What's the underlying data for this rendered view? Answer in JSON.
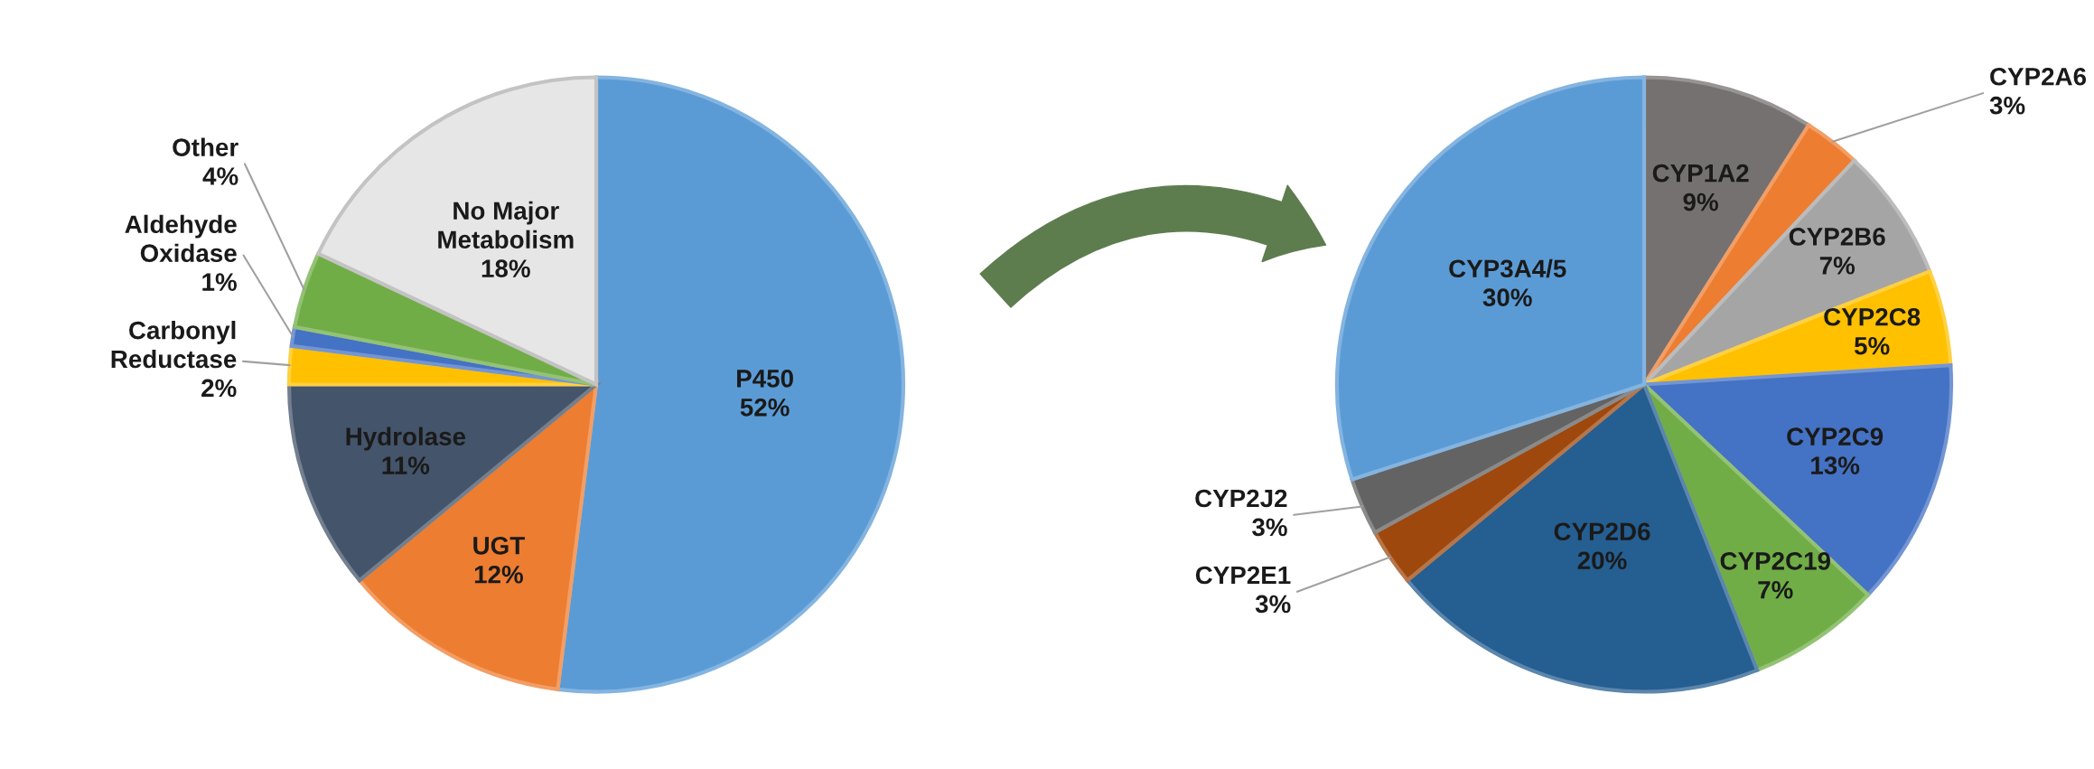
{
  "chart_data": [
    {
      "type": "pie",
      "categories": [
        "P450",
        "UGT",
        "Hydrolase",
        "Carbonyl Reductase",
        "Aldehyde Oxidase",
        "Other",
        "No Major Metabolism"
      ],
      "values": [
        52,
        12,
        11,
        2,
        1,
        4,
        18
      ],
      "value_labels": [
        "52%",
        "12%",
        "11%",
        "2%",
        "1%",
        "4%",
        "18%"
      ],
      "colors": [
        "#5b9bd5",
        "#ed7d31",
        "#44546a",
        "#ffc000",
        "#4472c4",
        "#70ad47",
        "#e7e6e6"
      ]
    },
    {
      "type": "pie",
      "categories": [
        "CYP1A2",
        "CYP2A6",
        "CYP2B6",
        "CYP2C8",
        "CYP2C9",
        "CYP2C19",
        "CYP2D6",
        "CYP2E1",
        "CYP2J2",
        "CYP3A4/5"
      ],
      "values": [
        9,
        3,
        7,
        5,
        13,
        7,
        20,
        3,
        3,
        30
      ],
      "value_labels": [
        "9%",
        "3%",
        "7%",
        "5%",
        "13%",
        "7%",
        "20%",
        "3%",
        "3%",
        "30%"
      ],
      "colors": [
        "#767171",
        "#ed7d31",
        "#a5a5a5",
        "#ffc000",
        "#4472c4",
        "#70ad47",
        "#255e91",
        "#9e480e",
        "#636363",
        "#5b9bd5"
      ]
    }
  ]
}
